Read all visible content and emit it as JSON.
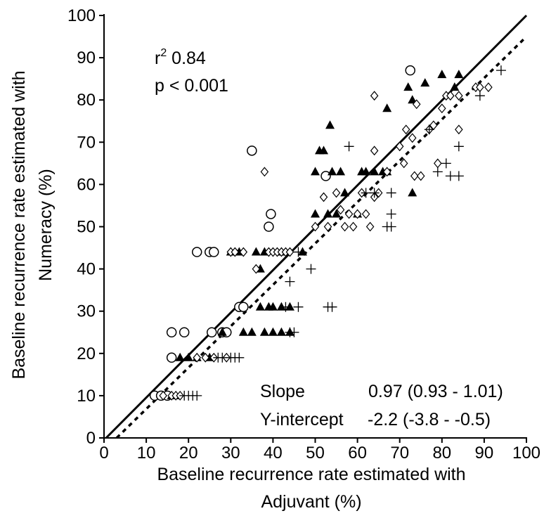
{
  "chart_data": {
    "type": "scatter",
    "xlabel": [
      "Baseline recurrence rate estimated with",
      "Adjuvant (%)"
    ],
    "ylabel": [
      "Baseline recurrence rate estimated with",
      "Numeracy (%)"
    ],
    "xlim": [
      0,
      100
    ],
    "ylim": [
      0,
      100
    ],
    "xticks": [
      0,
      10,
      20,
      30,
      40,
      50,
      60,
      70,
      80,
      90,
      100
    ],
    "yticks": [
      0,
      10,
      20,
      30,
      40,
      50,
      60,
      70,
      80,
      90,
      100
    ],
    "grid": false,
    "annotations": {
      "r2_prefix": "r",
      "r2_sup": "2",
      "r2_value": " 0.84",
      "p_value": "p < 0.001",
      "slope_label": "Slope",
      "slope_value": "0.97 (0.93 - 1.01)",
      "intercept_label": "Y-intercept",
      "intercept_value": "-2.2 (-3.8 - -0.5)"
    },
    "lines": [
      {
        "style": "solid",
        "x": [
          0.5,
          100
        ],
        "y": [
          0,
          100
        ]
      },
      {
        "style": "dotted",
        "x": [
          3,
          100
        ],
        "y": [
          0,
          95
        ]
      }
    ],
    "series": [
      {
        "marker": "circle",
        "points": [
          [
            12,
            10
          ],
          [
            13.5,
            10
          ],
          [
            15,
            10
          ],
          [
            16,
            19
          ],
          [
            16,
            25
          ],
          [
            19,
            25
          ],
          [
            22,
            44
          ],
          [
            25,
            44
          ],
          [
            25.5,
            25
          ],
          [
            26,
            44
          ],
          [
            28,
            25
          ],
          [
            29,
            25
          ],
          [
            32,
            31
          ],
          [
            33,
            31
          ],
          [
            35,
            68
          ],
          [
            39,
            50
          ],
          [
            39.5,
            53
          ],
          [
            52.5,
            62
          ],
          [
            72.5,
            87
          ]
        ]
      },
      {
        "marker": "triangle",
        "points": [
          [
            16,
            10
          ],
          [
            17,
            10
          ],
          [
            18,
            19
          ],
          [
            20,
            19
          ],
          [
            22,
            19
          ],
          [
            25,
            19
          ],
          [
            28,
            25
          ],
          [
            30,
            44
          ],
          [
            32,
            44
          ],
          [
            33,
            25
          ],
          [
            35,
            25
          ],
          [
            36,
            44
          ],
          [
            37,
            40
          ],
          [
            37,
            31
          ],
          [
            38,
            25
          ],
          [
            38,
            44
          ],
          [
            39,
            31
          ],
          [
            40,
            25
          ],
          [
            40,
            31
          ],
          [
            42,
            25
          ],
          [
            42,
            31
          ],
          [
            42,
            44
          ],
          [
            44,
            25
          ],
          [
            44,
            31
          ],
          [
            47,
            44
          ],
          [
            50,
            53
          ],
          [
            50,
            63
          ],
          [
            51,
            68
          ],
          [
            52,
            68
          ],
          [
            53,
            53
          ],
          [
            53.5,
            74
          ],
          [
            54,
            63
          ],
          [
            55,
            53
          ],
          [
            56,
            63
          ],
          [
            57,
            58
          ],
          [
            60,
            53
          ],
          [
            61,
            63
          ],
          [
            62,
            63
          ],
          [
            64,
            63
          ],
          [
            66,
            63
          ],
          [
            67,
            78
          ],
          [
            67,
            63
          ],
          [
            72,
            83
          ],
          [
            73,
            80
          ],
          [
            73,
            58
          ],
          [
            76,
            84
          ],
          [
            80,
            86
          ],
          [
            83,
            83
          ],
          [
            84,
            86
          ]
        ]
      },
      {
        "marker": "diamond",
        "points": [
          [
            14,
            10
          ],
          [
            16,
            10
          ],
          [
            17,
            10
          ],
          [
            18,
            10
          ],
          [
            22,
            19
          ],
          [
            24,
            19
          ],
          [
            26,
            19
          ],
          [
            29,
            19
          ],
          [
            30,
            44
          ],
          [
            31,
            44
          ],
          [
            33,
            44
          ],
          [
            36,
            40
          ],
          [
            38,
            63
          ],
          [
            39,
            44
          ],
          [
            40,
            44
          ],
          [
            41,
            44
          ],
          [
            42,
            44
          ],
          [
            43,
            44
          ],
          [
            44,
            44
          ],
          [
            50,
            50
          ],
          [
            52,
            57
          ],
          [
            53,
            50
          ],
          [
            55,
            58
          ],
          [
            56,
            54
          ],
          [
            57,
            50
          ],
          [
            58,
            53
          ],
          [
            59,
            50
          ],
          [
            60,
            53
          ],
          [
            61,
            58
          ],
          [
            62,
            53
          ],
          [
            63,
            50
          ],
          [
            64,
            68
          ],
          [
            64,
            57
          ],
          [
            64,
            81
          ],
          [
            65,
            58
          ],
          [
            67,
            63
          ],
          [
            70,
            69
          ],
          [
            71,
            65
          ],
          [
            71.5,
            73
          ],
          [
            73,
            71
          ],
          [
            73.5,
            62
          ],
          [
            74,
            79
          ],
          [
            75,
            62
          ],
          [
            77,
            73
          ],
          [
            78,
            74
          ],
          [
            79,
            65
          ],
          [
            80,
            78
          ],
          [
            81,
            81
          ],
          [
            82,
            81
          ],
          [
            84,
            73
          ],
          [
            84,
            81
          ],
          [
            88,
            83
          ],
          [
            89,
            83
          ],
          [
            91,
            83
          ]
        ]
      },
      {
        "marker": "plus",
        "points": [
          [
            19,
            10
          ],
          [
            20,
            10
          ],
          [
            21,
            10
          ],
          [
            22,
            10
          ],
          [
            27,
            19
          ],
          [
            28,
            19
          ],
          [
            30,
            19
          ],
          [
            31,
            19
          ],
          [
            32,
            19
          ],
          [
            43,
            31
          ],
          [
            44,
            25
          ],
          [
            45,
            25
          ],
          [
            46,
            31
          ],
          [
            44,
            37
          ],
          [
            46,
            44
          ],
          [
            49,
            40
          ],
          [
            53,
            31
          ],
          [
            54,
            31
          ],
          [
            58,
            69
          ],
          [
            62,
            58
          ],
          [
            64,
            58
          ],
          [
            67,
            50
          ],
          [
            68,
            50
          ],
          [
            68,
            53
          ],
          [
            68,
            58
          ],
          [
            77,
            73
          ],
          [
            79,
            63
          ],
          [
            81,
            65
          ],
          [
            82,
            62
          ],
          [
            84,
            62
          ],
          [
            84,
            69
          ],
          [
            89,
            81
          ],
          [
            94,
            87
          ]
        ]
      }
    ]
  }
}
